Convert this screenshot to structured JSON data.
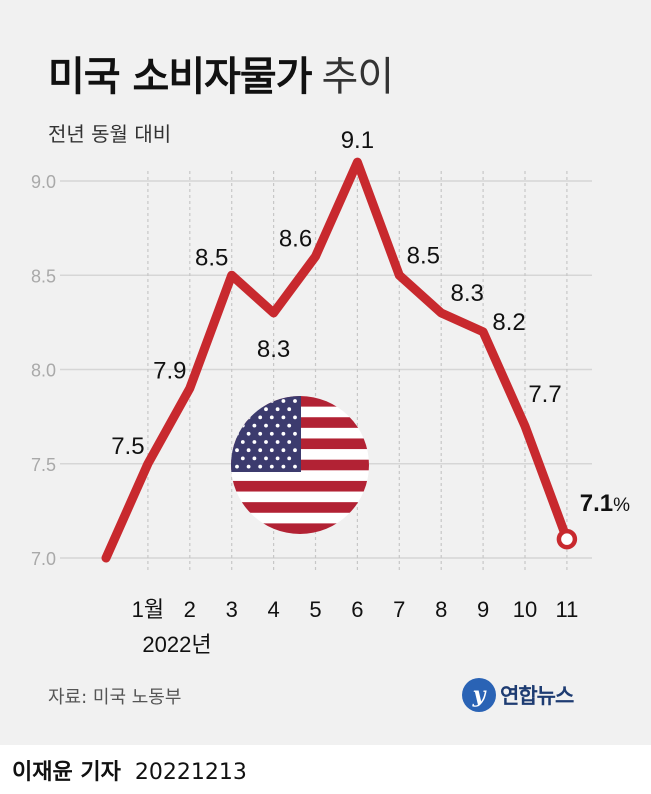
{
  "title": {
    "main": "미국 소비자물가",
    "suffix": "추이"
  },
  "subtitle": "전년 동월 대비",
  "chart_data": {
    "type": "line",
    "categories": [
      "",
      "1월",
      "2",
      "3",
      "4",
      "5",
      "6",
      "7",
      "8",
      "9",
      "10",
      "11"
    ],
    "year_label": "2022년",
    "values": [
      7.0,
      7.5,
      7.9,
      8.5,
      8.3,
      8.6,
      9.1,
      8.5,
      8.3,
      8.2,
      7.7,
      7.1
    ],
    "data_labels": [
      "",
      "7.5",
      "7.9",
      "8.5",
      "8.3",
      "8.6",
      "9.1",
      "8.5",
      "8.3",
      "8.2",
      "7.7",
      "7.1"
    ],
    "last_label_unit": "%",
    "yticks": [
      "9.0",
      "8.5",
      "8.0",
      "7.5",
      "7.0"
    ],
    "ylim": [
      7.0,
      9.0
    ],
    "grid": true,
    "line_color": "#c8292e",
    "endpoint_fill": "#ffffff"
  },
  "source": "자료: 미국 노동부",
  "logo": {
    "mark": "y",
    "text": "연합뉴스"
  },
  "credit": {
    "name": "이재윤 기자",
    "date": "20221213"
  }
}
